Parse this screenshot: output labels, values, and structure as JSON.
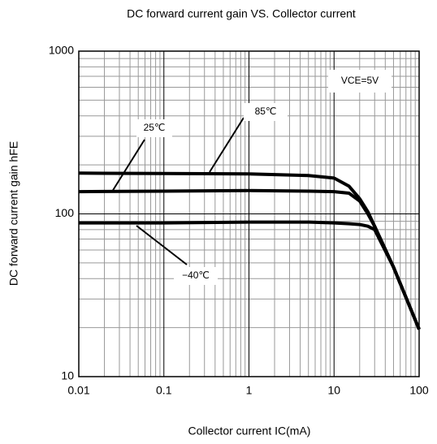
{
  "chart_data": {
    "type": "line",
    "title": "DC forward current gain VS. Collector current",
    "xlabel": "Collector current  IC(mA)",
    "ylabel": "DC forward current gain hFE",
    "annotation": "VCE=5V",
    "x": [
      0.01,
      0.1,
      1,
      5,
      10,
      15,
      20,
      25,
      30,
      50,
      100
    ],
    "series": [
      {
        "name": "85℃",
        "color": "#000000",
        "values": [
          178,
          177,
          176,
          172,
          166,
          148,
          124,
          103,
          84,
          47,
          19.5
        ]
      },
      {
        "name": "25℃",
        "color": "#000000",
        "values": [
          137,
          138,
          139,
          138,
          137,
          134,
          120,
          100,
          84,
          47,
          19.5
        ]
      },
      {
        "name": "−40℃",
        "color": "#000000",
        "values": [
          88,
          88,
          89,
          89,
          88,
          87,
          86,
          84,
          80,
          47,
          19.5
        ]
      }
    ],
    "xlim": [
      0.01,
      100
    ],
    "xticks": [
      0.01,
      0.1,
      1,
      10,
      100
    ],
    "ylim": [
      10,
      1000
    ],
    "yticks": [
      10,
      100,
      1000
    ],
    "xscale": "log",
    "yscale": "log",
    "grid": true
  }
}
